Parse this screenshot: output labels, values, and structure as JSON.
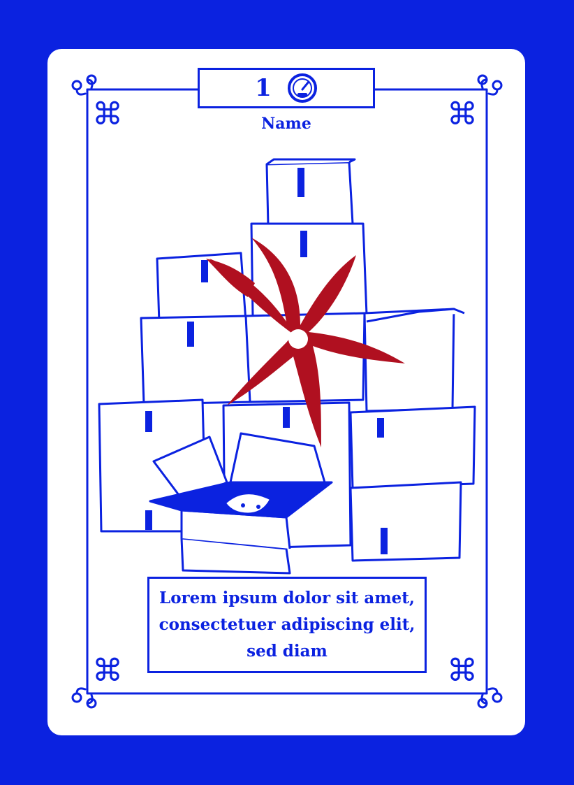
{
  "card": {
    "cost": "1",
    "cost_icon": "speedometer-icon",
    "name": "Name",
    "body_text": "Lorem ipsum dolor sit amet, consectetuer adipiscing elit, sed diam",
    "corner_symbol": "⌘"
  },
  "colors": {
    "background": "#0b22e0",
    "card": "#ffffff",
    "ink": "#0b22e0",
    "shuriken": "#b01020"
  },
  "illustration": {
    "subject_icons": [
      "stacked-boxes-icon",
      "shuriken-icon",
      "cat-in-box-icon"
    ]
  }
}
